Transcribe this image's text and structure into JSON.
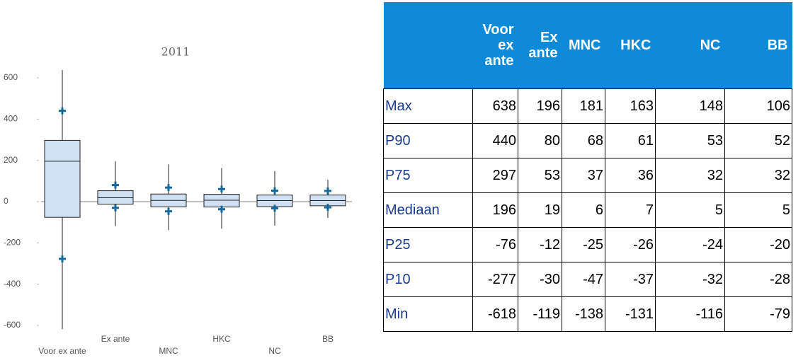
{
  "chart_data": {
    "type": "box",
    "title": "2011",
    "categories": [
      "Voor ex ante",
      "Ex ante",
      "MNC",
      "HKC",
      "NC",
      "BB"
    ],
    "stats": {
      "max": [
        638,
        196,
        181,
        163,
        148,
        106
      ],
      "p90": [
        440,
        80,
        68,
        61,
        53,
        52
      ],
      "p75": [
        297,
        53,
        37,
        36,
        32,
        32
      ],
      "median": [
        196,
        19,
        6,
        7,
        5,
        5
      ],
      "p25": [
        -76,
        -12,
        -25,
        -26,
        -24,
        -20
      ],
      "p10": [
        -277,
        -30,
        -47,
        -37,
        -32,
        -28
      ],
      "min": [
        -618,
        -119,
        -138,
        -131,
        -116,
        -79
      ]
    },
    "box_color": "#cfe0f3",
    "marker_color": "#17699c",
    "ylim": [
      -640,
      660
    ],
    "yticks": [
      -600,
      -400,
      -200,
      0,
      200,
      400,
      600
    ]
  },
  "table": {
    "columns": [
      "Voor ex ante",
      "Ex ante",
      "MNC",
      "HKC",
      "NC",
      "BB"
    ],
    "rows": [
      {
        "label": "Max",
        "values": [
          638,
          196,
          181,
          163,
          148,
          106
        ]
      },
      {
        "label": "P90",
        "values": [
          440,
          80,
          68,
          61,
          53,
          52
        ]
      },
      {
        "label": "P75",
        "values": [
          297,
          53,
          37,
          36,
          32,
          32
        ]
      },
      {
        "label": "Mediaan",
        "values": [
          196,
          19,
          6,
          7,
          5,
          5
        ]
      },
      {
        "label": "P25",
        "values": [
          -76,
          -12,
          -25,
          -26,
          -24,
          -20
        ]
      },
      {
        "label": "P10",
        "values": [
          -277,
          -30,
          -47,
          -37,
          -32,
          -28
        ]
      },
      {
        "label": "Min",
        "values": [
          -618,
          -119,
          -138,
          -131,
          -116,
          -79
        ]
      }
    ]
  }
}
